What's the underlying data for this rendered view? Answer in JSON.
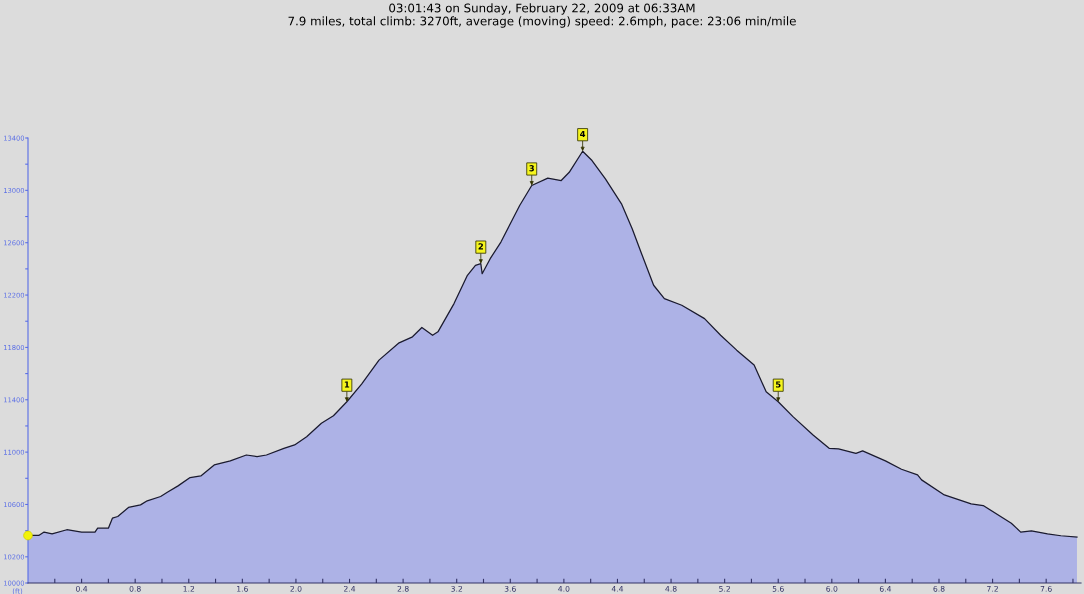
{
  "chart_data": {
    "type": "area",
    "title": "03:01:43 on Sunday, February 22, 2009 at 06:33AM",
    "subtitle": "7.9 miles, total climb: 3270ft, average (moving) speed: 2.6mph, pace: 23:06 min/mile",
    "ylabel": "(ft)",
    "series": [
      {
        "color": "#adb2e6",
        "x": [
          0,
          0.08,
          0.12,
          0.18,
          0.29,
          0.4,
          0.5,
          0.52,
          0.6,
          0.63,
          0.67,
          0.75,
          0.84,
          0.89,
          0.99,
          1.04,
          1.12,
          1.21,
          1.29,
          1.39,
          1.51,
          1.63,
          1.71,
          1.78,
          1.91,
          1.99,
          2.08,
          2.19,
          2.28,
          2.38,
          2.49,
          2.62,
          2.77,
          2.87,
          2.94,
          3.02,
          3.06,
          3.18,
          3.28,
          3.34,
          3.38,
          3.39,
          3.45,
          3.53,
          3.6,
          3.67,
          3.76,
          3.88,
          3.98,
          4.04,
          4.14,
          4.21,
          4.31,
          4.43,
          4.51,
          4.58,
          4.67,
          4.75,
          4.88,
          5.05,
          5.17,
          5.29,
          5.42,
          5.51,
          5.6,
          5.71,
          5.86,
          5.98,
          6.05,
          6.18,
          6.23,
          6.4,
          6.52,
          6.64,
          6.67,
          6.84,
          7.04,
          7.13,
          7.34,
          7.41,
          7.49,
          7.61,
          7.71,
          7.83
        ],
        "values": [
          10363,
          10363,
          10389,
          10376,
          10407,
          10389,
          10389,
          10419,
          10419,
          10495,
          10508,
          10577,
          10597,
          10628,
          10661,
          10694,
          10742,
          10806,
          10818,
          10902,
          10933,
          10978,
          10966,
          10978,
          11029,
          11055,
          11118,
          11220,
          11278,
          11385,
          11520,
          11703,
          11835,
          11881,
          11952,
          11893,
          11919,
          12135,
          12351,
          12427,
          12440,
          12363,
          12478,
          12605,
          12745,
          12884,
          13037,
          13093,
          13075,
          13138,
          13299,
          13228,
          13088,
          12897,
          12706,
          12516,
          12275,
          12173,
          12122,
          12020,
          11893,
          11779,
          11665,
          11461,
          11385,
          11271,
          11131,
          11029,
          11024,
          10991,
          11009,
          10933,
          10869,
          10826,
          10788,
          10673,
          10605,
          10592,
          10457,
          10389,
          10399,
          10376,
          10361,
          10351
        ]
      },
      {
        "type": "scatter",
        "color": "#f2f20a",
        "x": [
          0
        ],
        "values": [
          10363
        ]
      }
    ],
    "annotations": [
      {
        "text": "1",
        "x": 2.38,
        "y": 11385
      },
      {
        "text": "2",
        "x": 3.38,
        "y": 12440
      },
      {
        "text": "3",
        "x": 3.76,
        "y": 13037
      },
      {
        "text": "4",
        "x": 4.14,
        "y": 13299
      },
      {
        "text": "5",
        "x": 5.6,
        "y": 11385
      }
    ],
    "xlim": [
      0,
      7.86
    ],
    "ylim": [
      10000,
      13400
    ],
    "xticks": [
      {
        "value": 0.2,
        "label": null
      },
      0.4,
      {
        "value": 0.6,
        "label": null
      },
      0.8,
      {
        "value": 1.0,
        "label": null
      },
      1.2,
      {
        "value": 1.4,
        "label": null
      },
      1.6,
      {
        "value": 1.8,
        "label": null
      },
      {
        "value": 2.0,
        "label": "2.0"
      },
      {
        "value": 2.2,
        "label": null
      },
      2.4,
      {
        "value": 2.6,
        "label": null
      },
      2.8,
      {
        "value": 3.0,
        "label": null
      },
      3.2,
      {
        "value": 3.4,
        "label": null
      },
      3.6,
      {
        "value": 3.8,
        "label": null
      },
      {
        "value": 4.0,
        "label": "4.0"
      },
      {
        "value": 4.2,
        "label": null
      },
      4.4,
      {
        "value": 4.6,
        "label": null
      },
      4.8,
      {
        "value": 5.0,
        "label": null
      },
      5.2,
      {
        "value": 5.4,
        "label": null
      },
      5.6,
      {
        "value": 5.8,
        "label": null
      },
      {
        "value": 6.0,
        "label": "6.0"
      },
      {
        "value": 6.2,
        "label": null
      },
      6.4,
      {
        "value": 6.6,
        "label": null
      },
      6.8,
      {
        "value": 7.0,
        "label": null
      },
      7.2,
      {
        "value": 7.4,
        "label": null
      },
      7.6,
      {
        "value": 7.8,
        "label": null
      }
    ],
    "yticks": [
      10000,
      10200,
      {
        "value": 10400,
        "label": null
      },
      10600,
      {
        "value": 10800,
        "label": null
      },
      11000,
      {
        "value": 11200,
        "label": null
      },
      11400,
      {
        "value": 11600,
        "label": null
      },
      11800,
      {
        "value": 12000,
        "label": null
      },
      12200,
      {
        "value": 12400,
        "label": null
      },
      12600,
      {
        "value": 12800,
        "label": null
      },
      13000,
      {
        "value": 13200,
        "label": null
      },
      13400
    ],
    "grid": false,
    "legend": false
  }
}
